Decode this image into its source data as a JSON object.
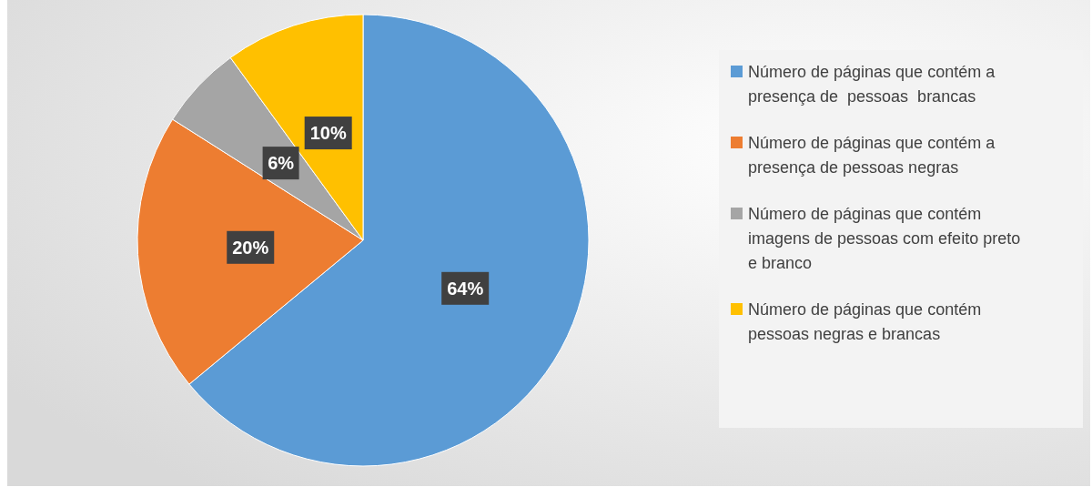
{
  "chart_data": {
    "type": "pie",
    "categories": [
      "Número de páginas que contém a presença de  pessoas  brancas",
      "Número de páginas que contém a presença de pessoas negras",
      "Número de páginas que contém imagens de pessoas com efeito preto e branco",
      "Número de páginas que contém pessoas negras e brancas"
    ],
    "values": [
      64,
      20,
      6,
      10
    ],
    "colors": [
      "#5b9bd5",
      "#ed7d31",
      "#a5a5a5",
      "#ffc000"
    ],
    "value_labels": [
      "64%",
      "20%",
      "6%",
      "10%"
    ],
    "legend": "right"
  }
}
